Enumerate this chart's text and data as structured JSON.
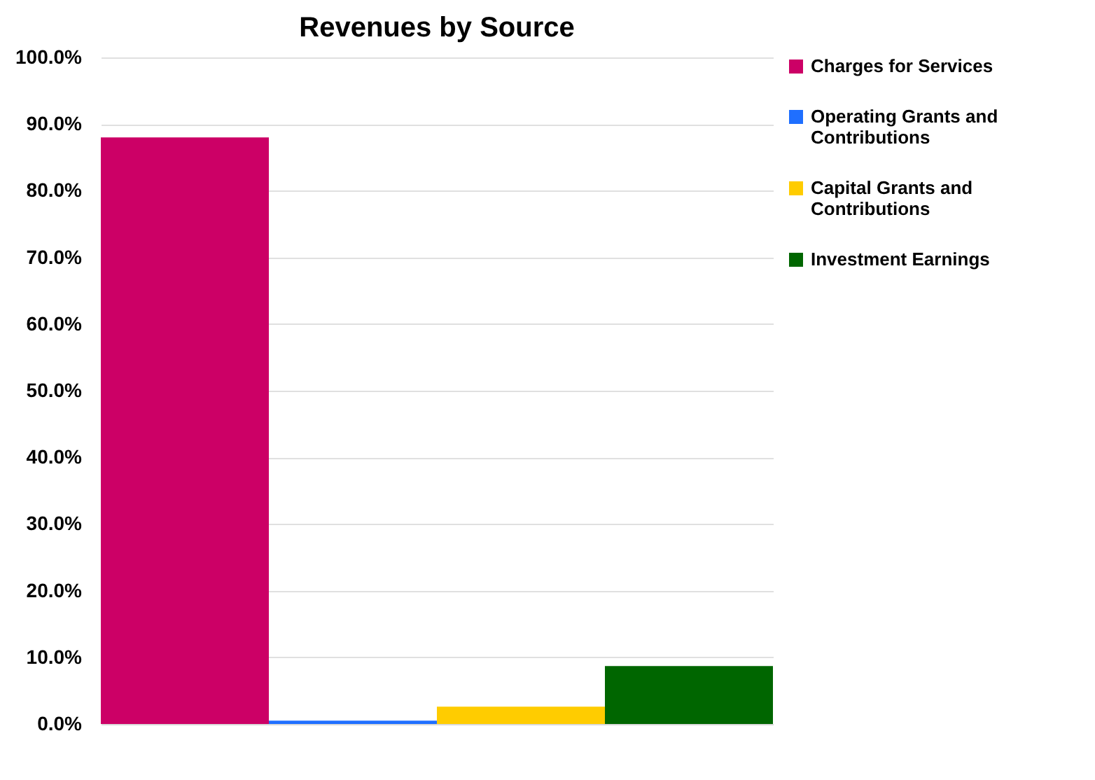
{
  "chart_data": {
    "type": "bar",
    "title": "Revenues by Source",
    "categories": [
      null
    ],
    "series": [
      {
        "name": "Charges for Services",
        "color": "#cc0066",
        "values": [
          88.0
        ]
      },
      {
        "name": "Operating Grants and Contributions",
        "color": "#1f6fff",
        "values": [
          0.5
        ]
      },
      {
        "name": "Capital Grants and Contributions",
        "color": "#ffcc00",
        "values": [
          2.6
        ]
      },
      {
        "name": "Investment Earnings",
        "color": "#006600",
        "values": [
          8.7
        ]
      }
    ],
    "ylim": [
      0,
      100
    ],
    "yticks": [
      {
        "value": 0,
        "label": "0.0%"
      },
      {
        "value": 10,
        "label": "10.0%"
      },
      {
        "value": 20,
        "label": "20.0%"
      },
      {
        "value": 30,
        "label": "30.0%"
      },
      {
        "value": 40,
        "label": "40.0%"
      },
      {
        "value": 50,
        "label": "50.0%"
      },
      {
        "value": 60,
        "label": "60.0%"
      },
      {
        "value": 70,
        "label": "70.0%"
      },
      {
        "value": 80,
        "label": "80.0%"
      },
      {
        "value": 90,
        "label": "90.0%"
      },
      {
        "value": 100,
        "label": "100.0%"
      }
    ],
    "grid": "y",
    "legend": "right",
    "tick_labels": "y"
  }
}
